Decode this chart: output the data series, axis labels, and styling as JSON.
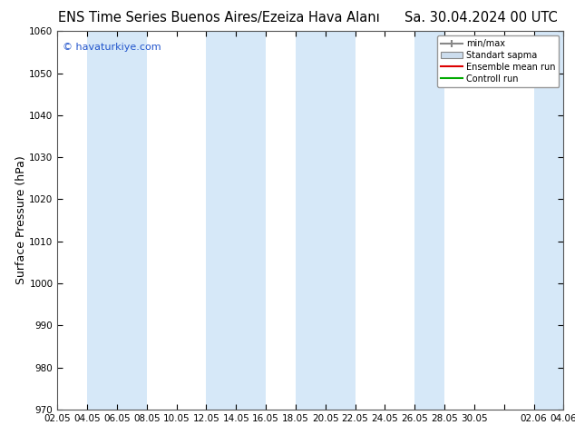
{
  "title_left": "ENS Time Series Buenos Aires/Ezeiza Hava Alanı",
  "title_right": "Sa. 30.04.2024 00 UTC",
  "ylabel": "Surface Pressure (hPa)",
  "watermark": "© havaturkiye.com",
  "ylim": [
    970,
    1060
  ],
  "yticks": [
    970,
    980,
    990,
    1000,
    1010,
    1020,
    1030,
    1040,
    1050,
    1060
  ],
  "xtick_labels": [
    "02.05",
    "04.05",
    "06.05",
    "08.05",
    "10.05",
    "12.05",
    "14.05",
    "16.05",
    "18.05",
    "20.05",
    "22.05",
    "24.05",
    "26.05",
    "28.05",
    "30.05",
    "",
    "02.06",
    "04.06"
  ],
  "xtick_positions": [
    0,
    1,
    2,
    3,
    4,
    5,
    6,
    7,
    8,
    9,
    10,
    11,
    12,
    13,
    14,
    15,
    16,
    17
  ],
  "band_color": "#d6e8f8",
  "bg_color": "#ffffff",
  "legend_items": [
    "min/max",
    "Standart sapma",
    "Ensemble mean run",
    "Controll run"
  ],
  "legend_line_colors": [
    "#aaaaaa",
    "#cccccc",
    "#dd0000",
    "#00aa00"
  ],
  "title_fontsize": 10.5,
  "tick_fontsize": 7.5,
  "ylabel_fontsize": 9,
  "band_ranges": [
    [
      1,
      3
    ],
    [
      5,
      7
    ],
    [
      8,
      10
    ],
    [
      12,
      13
    ],
    [
      16,
      18
    ]
  ],
  "watermark_color": "#2255cc"
}
